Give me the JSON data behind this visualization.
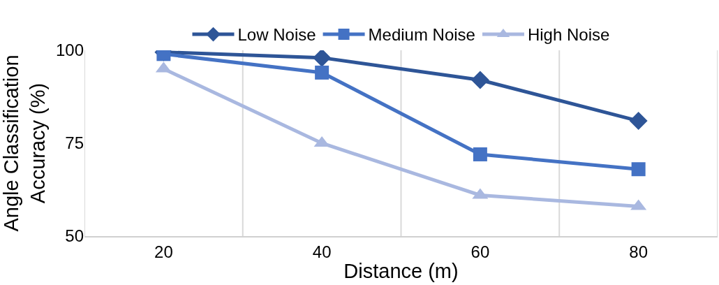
{
  "chart_data": {
    "type": "line",
    "xlabel": "Distance (m)",
    "ylabel": "Angle Classification\nAccuracy (%)",
    "categories": [
      "20",
      "40",
      "60",
      "80"
    ],
    "series": [
      {
        "name": "Low Noise",
        "color": "#2e5597",
        "marker": "diamond",
        "values": [
          99.5,
          98,
          92,
          81
        ]
      },
      {
        "name": "Medium Noise",
        "color": "#4472c4",
        "marker": "square",
        "values": [
          99,
          94,
          72,
          68
        ]
      },
      {
        "name": "High Noise",
        "color": "#a9b8e0",
        "marker": "triangle",
        "values": [
          95,
          75,
          61,
          58
        ]
      }
    ],
    "ylim": [
      50,
      100
    ],
    "yticks": [
      50,
      75,
      100
    ],
    "grid": "x",
    "legend": "top"
  }
}
